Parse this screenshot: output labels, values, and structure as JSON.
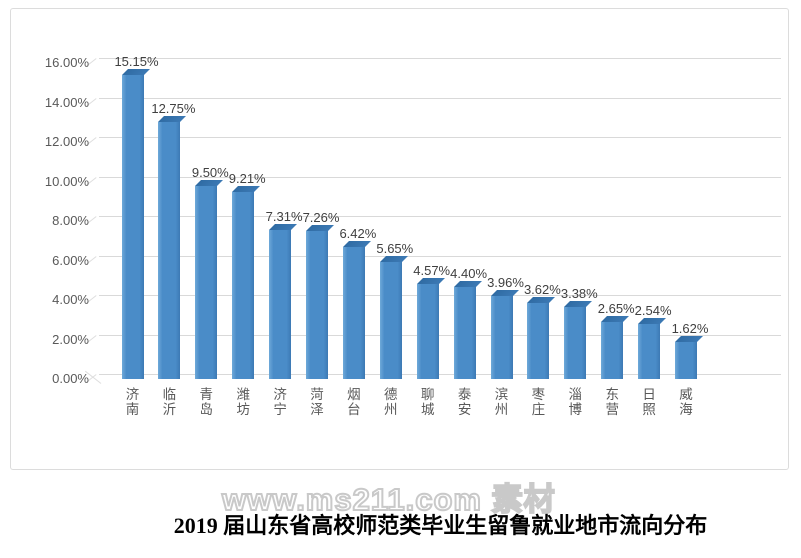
{
  "chart_data": {
    "type": "bar",
    "title": "2019 届山东省高校师范类毕业生留鲁就业地市流向分布",
    "xlabel": "",
    "ylabel": "",
    "categories": [
      "济南",
      "临沂",
      "青岛",
      "潍坊",
      "济宁",
      "菏泽",
      "烟台",
      "德州",
      "聊城",
      "泰安",
      "滨州",
      "枣庄",
      "淄博",
      "东营",
      "日照",
      "威海"
    ],
    "values": [
      15.15,
      12.75,
      9.5,
      9.21,
      7.31,
      7.26,
      6.42,
      5.65,
      4.57,
      4.4,
      3.96,
      3.62,
      3.38,
      2.65,
      2.54,
      1.62
    ],
    "value_labels": [
      "15.15%",
      "12.75%",
      "9.50%",
      "9.21%",
      "7.31%",
      "7.26%",
      "6.42%",
      "5.65%",
      "4.57%",
      "4.40%",
      "3.96%",
      "3.62%",
      "3.38%",
      "2.65%",
      "2.54%",
      "1.62%"
    ],
    "y_ticks": [
      {
        "value": 16,
        "label": "16.00%"
      },
      {
        "value": 14,
        "label": "14.00%"
      },
      {
        "value": 12,
        "label": "12.00%"
      },
      {
        "value": 10,
        "label": "10.00%"
      },
      {
        "value": 8,
        "label": "8.00%"
      },
      {
        "value": 6,
        "label": "6.00%"
      },
      {
        "value": 4,
        "label": "4.00%"
      },
      {
        "value": 2,
        "label": "2.00%"
      },
      {
        "value": 0,
        "label": "0.00%"
      }
    ],
    "ylim": [
      0,
      16
    ],
    "grid": true,
    "legend": false,
    "bar_style": "3d",
    "colors": {
      "bar_front": "#4a8cc8",
      "bar_front_highlight": "#6ea9d9",
      "bar_front_shade": "#3c79b4",
      "bar_top": "#2f6ba3",
      "grid": "#d9d9d9",
      "axis_diag": "#dedede",
      "tick_text": "#595959",
      "value_label_text": "#404040",
      "category_text": "#595959"
    }
  },
  "caption": {
    "text": "2019 届山东省高校师范类毕业生留鲁就业地市流向分布"
  },
  "watermark": {
    "text": "www.ms211.com 素材"
  }
}
